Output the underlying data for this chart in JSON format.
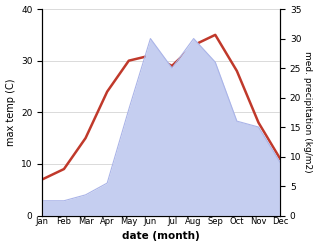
{
  "months": [
    "Jan",
    "Feb",
    "Mar",
    "Apr",
    "May",
    "Jun",
    "Jul",
    "Aug",
    "Sep",
    "Oct",
    "Nov",
    "Dec"
  ],
  "temperature": [
    7,
    9,
    15,
    24,
    30,
    31,
    29,
    33,
    35,
    28,
    18,
    11
  ],
  "precipitation": [
    2.5,
    2.5,
    3.5,
    5.5,
    18,
    30,
    25,
    30,
    26,
    16,
    15,
    9
  ],
  "temp_color": "#c0392b",
  "precip_fill_color": "#c5cef0",
  "precip_edge_color": "#aab4e8",
  "left_ylabel": "max temp (C)",
  "right_ylabel": "med. precipitation (kg/m2)",
  "xlabel": "date (month)",
  "left_ylim": [
    0,
    40
  ],
  "right_ylim": [
    0,
    35
  ],
  "left_yticks": [
    0,
    10,
    20,
    30,
    40
  ],
  "right_yticks": [
    0,
    5,
    10,
    15,
    20,
    25,
    30,
    35
  ],
  "bg_color": "#ffffff",
  "temp_linewidth": 1.8
}
